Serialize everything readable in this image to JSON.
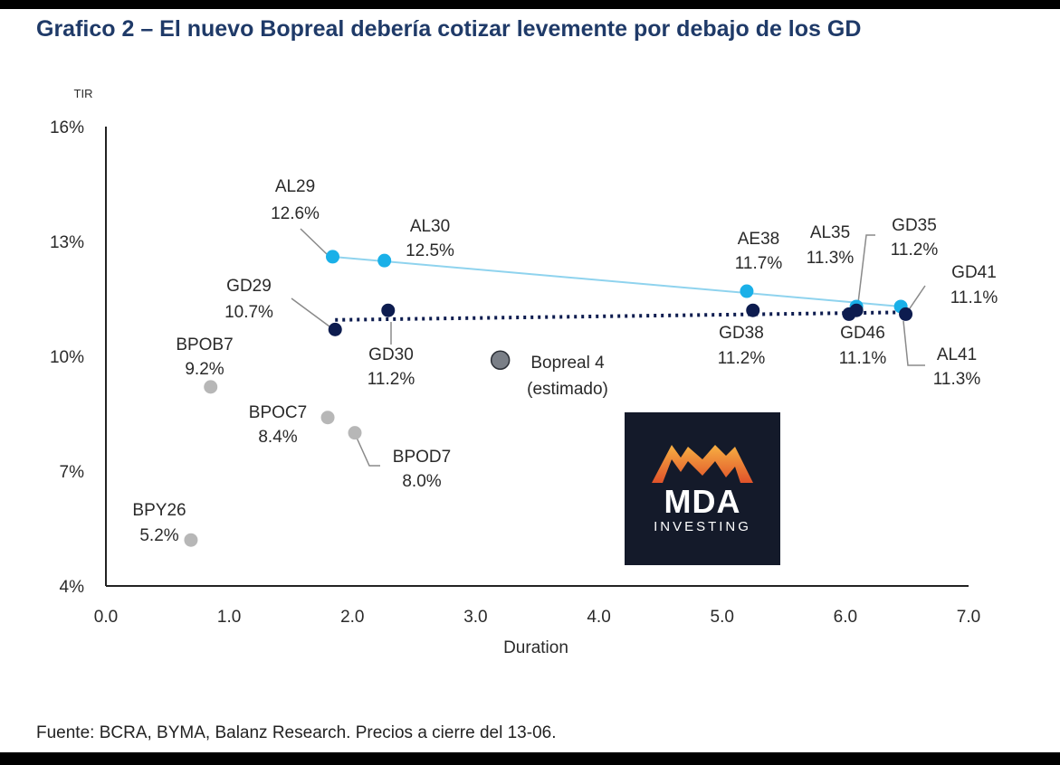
{
  "title": "Grafico 2 – El nuevo Bopreal debería cotizar levemente por debajo de los GD",
  "source": "Fuente: BCRA, BYMA, Balanz Research. Precios a cierre del 13-06.",
  "logo": {
    "main": "MDA",
    "sub": "INVESTING"
  },
  "colors": {
    "al": "#1ab0e8",
    "gd": "#0d1c4f",
    "bopreal": "#b7b7b7",
    "estimado": "#7a7f87",
    "al_trend": "#8fd3ee",
    "gd_trend": "#0d1c4f"
  },
  "chart_data": {
    "type": "scatter",
    "xlabel": "Duration",
    "ylabel": "TIR",
    "xlim": [
      0,
      7
    ],
    "ylim": [
      4,
      16
    ],
    "x_ticks": [
      "0.0",
      "1.0",
      "2.0",
      "3.0",
      "4.0",
      "5.0",
      "6.0",
      "7.0"
    ],
    "y_ticks": [
      "4%",
      "7%",
      "10%",
      "13%",
      "16%"
    ],
    "points": [
      {
        "name": "AL29",
        "value": "12.6%",
        "group": "al",
        "x": 1.84,
        "y": 12.6
      },
      {
        "name": "AL30",
        "value": "12.5%",
        "group": "al",
        "x": 2.26,
        "y": 12.5
      },
      {
        "name": "AE38",
        "value": "11.7%",
        "group": "al",
        "x": 5.2,
        "y": 11.7
      },
      {
        "name": "AL35",
        "value": "11.3%",
        "group": "al",
        "x": 6.09,
        "y": 11.3
      },
      {
        "name": "AL41",
        "value": "11.3%",
        "group": "al",
        "x": 6.45,
        "y": 11.3
      },
      {
        "name": "GD29",
        "value": "10.7%",
        "group": "gd",
        "x": 1.86,
        "y": 10.7
      },
      {
        "name": "GD30",
        "value": "11.2%",
        "group": "gd",
        "x": 2.29,
        "y": 11.2
      },
      {
        "name": "GD38",
        "value": "11.2%",
        "group": "gd",
        "x": 5.25,
        "y": 11.2
      },
      {
        "name": "GD46",
        "value": "11.1%",
        "group": "gd",
        "x": 6.03,
        "y": 11.1
      },
      {
        "name": "GD35",
        "value": "11.2%",
        "group": "gd",
        "x": 6.09,
        "y": 11.2
      },
      {
        "name": "GD41",
        "value": "11.1%",
        "group": "gd",
        "x": 6.49,
        "y": 11.1
      },
      {
        "name": "BPOB7",
        "value": "9.2%",
        "group": "bopreal",
        "x": 0.85,
        "y": 9.2
      },
      {
        "name": "BPOC7",
        "value": "8.4%",
        "group": "bopreal",
        "x": 1.8,
        "y": 8.4
      },
      {
        "name": "BPOD7",
        "value": "8.0%",
        "group": "bopreal",
        "x": 2.02,
        "y": 8.0
      },
      {
        "name": "BPY26",
        "value": "5.2%",
        "group": "bopreal",
        "x": 0.69,
        "y": 5.2
      },
      {
        "name": "Bopreal 4",
        "value": "(estimado)",
        "group": "estimado",
        "x": 3.2,
        "y": 9.9
      }
    ],
    "trendlines": [
      {
        "group": "al",
        "style": "solid",
        "x": [
          1.84,
          6.45
        ],
        "y": [
          12.6,
          11.3
        ]
      },
      {
        "group": "gd",
        "style": "dotted",
        "x": [
          1.86,
          6.49
        ],
        "y": [
          10.95,
          11.15
        ]
      }
    ]
  }
}
